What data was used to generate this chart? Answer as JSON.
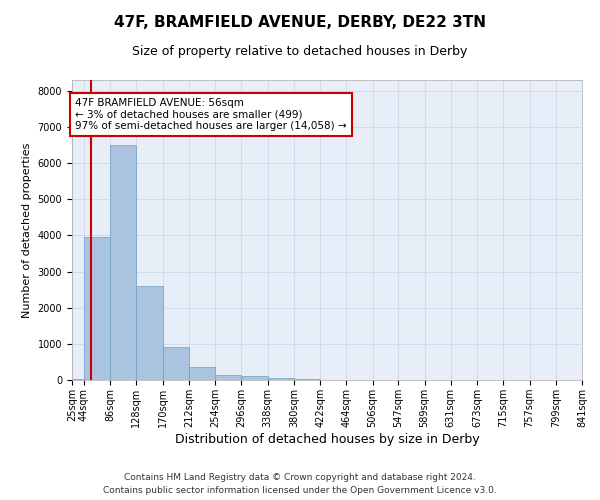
{
  "title1": "47F, BRAMFIELD AVENUE, DERBY, DE22 3TN",
  "title2": "Size of property relative to detached houses in Derby",
  "xlabel": "Distribution of detached houses by size in Derby",
  "ylabel": "Number of detached properties",
  "bin_edges": [
    25,
    44,
    86,
    128,
    170,
    212,
    254,
    296,
    338,
    380,
    422,
    464,
    506,
    547,
    589,
    631,
    673,
    715,
    757,
    799,
    841
  ],
  "bin_labels": [
    "25sqm",
    "44sqm",
    "86sqm",
    "128sqm",
    "170sqm",
    "212sqm",
    "254sqm",
    "296sqm",
    "338sqm",
    "380sqm",
    "422sqm",
    "464sqm",
    "506sqm",
    "547sqm",
    "589sqm",
    "631sqm",
    "673sqm",
    "715sqm",
    "757sqm",
    "799sqm",
    "841sqm"
  ],
  "bar_heights": [
    25,
    3950,
    6500,
    2600,
    900,
    370,
    150,
    100,
    60,
    20,
    10,
    5,
    2,
    1,
    0,
    0,
    0,
    0,
    0,
    0
  ],
  "bar_color": "#aac4e0",
  "bar_edge_color": "#6a9fc0",
  "property_size": 56,
  "property_line_color": "#cc0000",
  "annotation_line1": "47F BRAMFIELD AVENUE: 56sqm",
  "annotation_line2": "← 3% of detached houses are smaller (499)",
  "annotation_line3": "97% of semi-detached houses are larger (14,058) →",
  "annotation_box_color": "#cc0000",
  "ylim": [
    0,
    8300
  ],
  "yticks": [
    0,
    1000,
    2000,
    3000,
    4000,
    5000,
    6000,
    7000,
    8000
  ],
  "grid_color": "#d0d8e8",
  "background_color": "#e8eef8",
  "footer_line1": "Contains HM Land Registry data © Crown copyright and database right 2024.",
  "footer_line2": "Contains public sector information licensed under the Open Government Licence v3.0.",
  "title1_fontsize": 11,
  "title2_fontsize": 9,
  "xlabel_fontsize": 9,
  "ylabel_fontsize": 8,
  "tick_fontsize": 7,
  "annotation_fontsize": 7.5,
  "footer_fontsize": 6.5
}
